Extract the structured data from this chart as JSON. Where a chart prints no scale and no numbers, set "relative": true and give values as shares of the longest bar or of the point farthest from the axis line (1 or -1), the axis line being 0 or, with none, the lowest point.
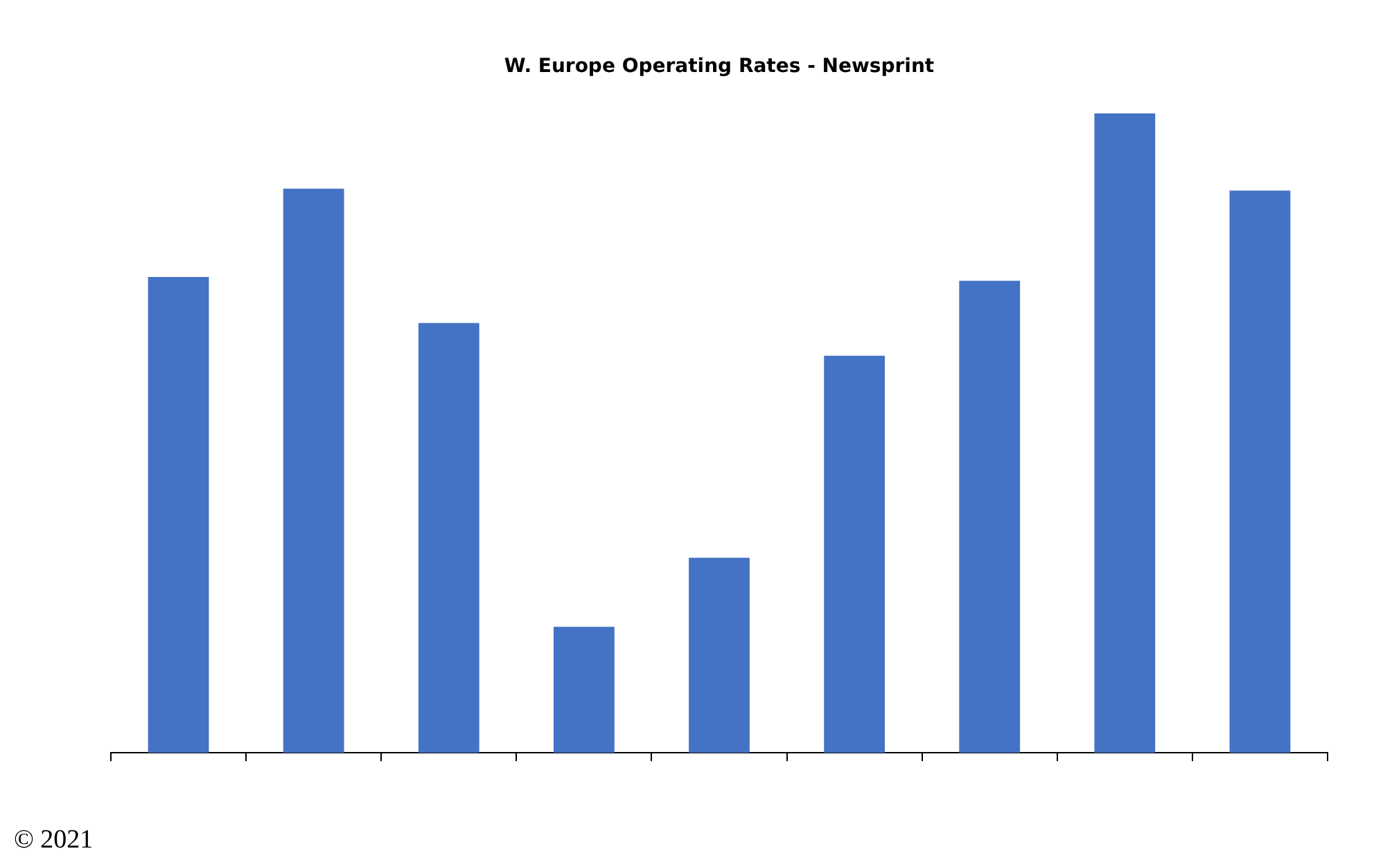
{
  "chart_data": {
    "type": "bar",
    "title": "W. Europe Operating Rates - Newsprint",
    "categories": [
      null,
      null,
      null,
      null,
      null,
      null,
      null,
      null,
      null
    ],
    "values": [
      0.744,
      0.882,
      0.672,
      0.197,
      0.305,
      0.621,
      0.738,
      1,
      0.879
    ],
    "color": "#4472c4",
    "relative": true,
    "grid": false,
    "legend": false,
    "annotations": [
      "© 2021"
    ]
  }
}
